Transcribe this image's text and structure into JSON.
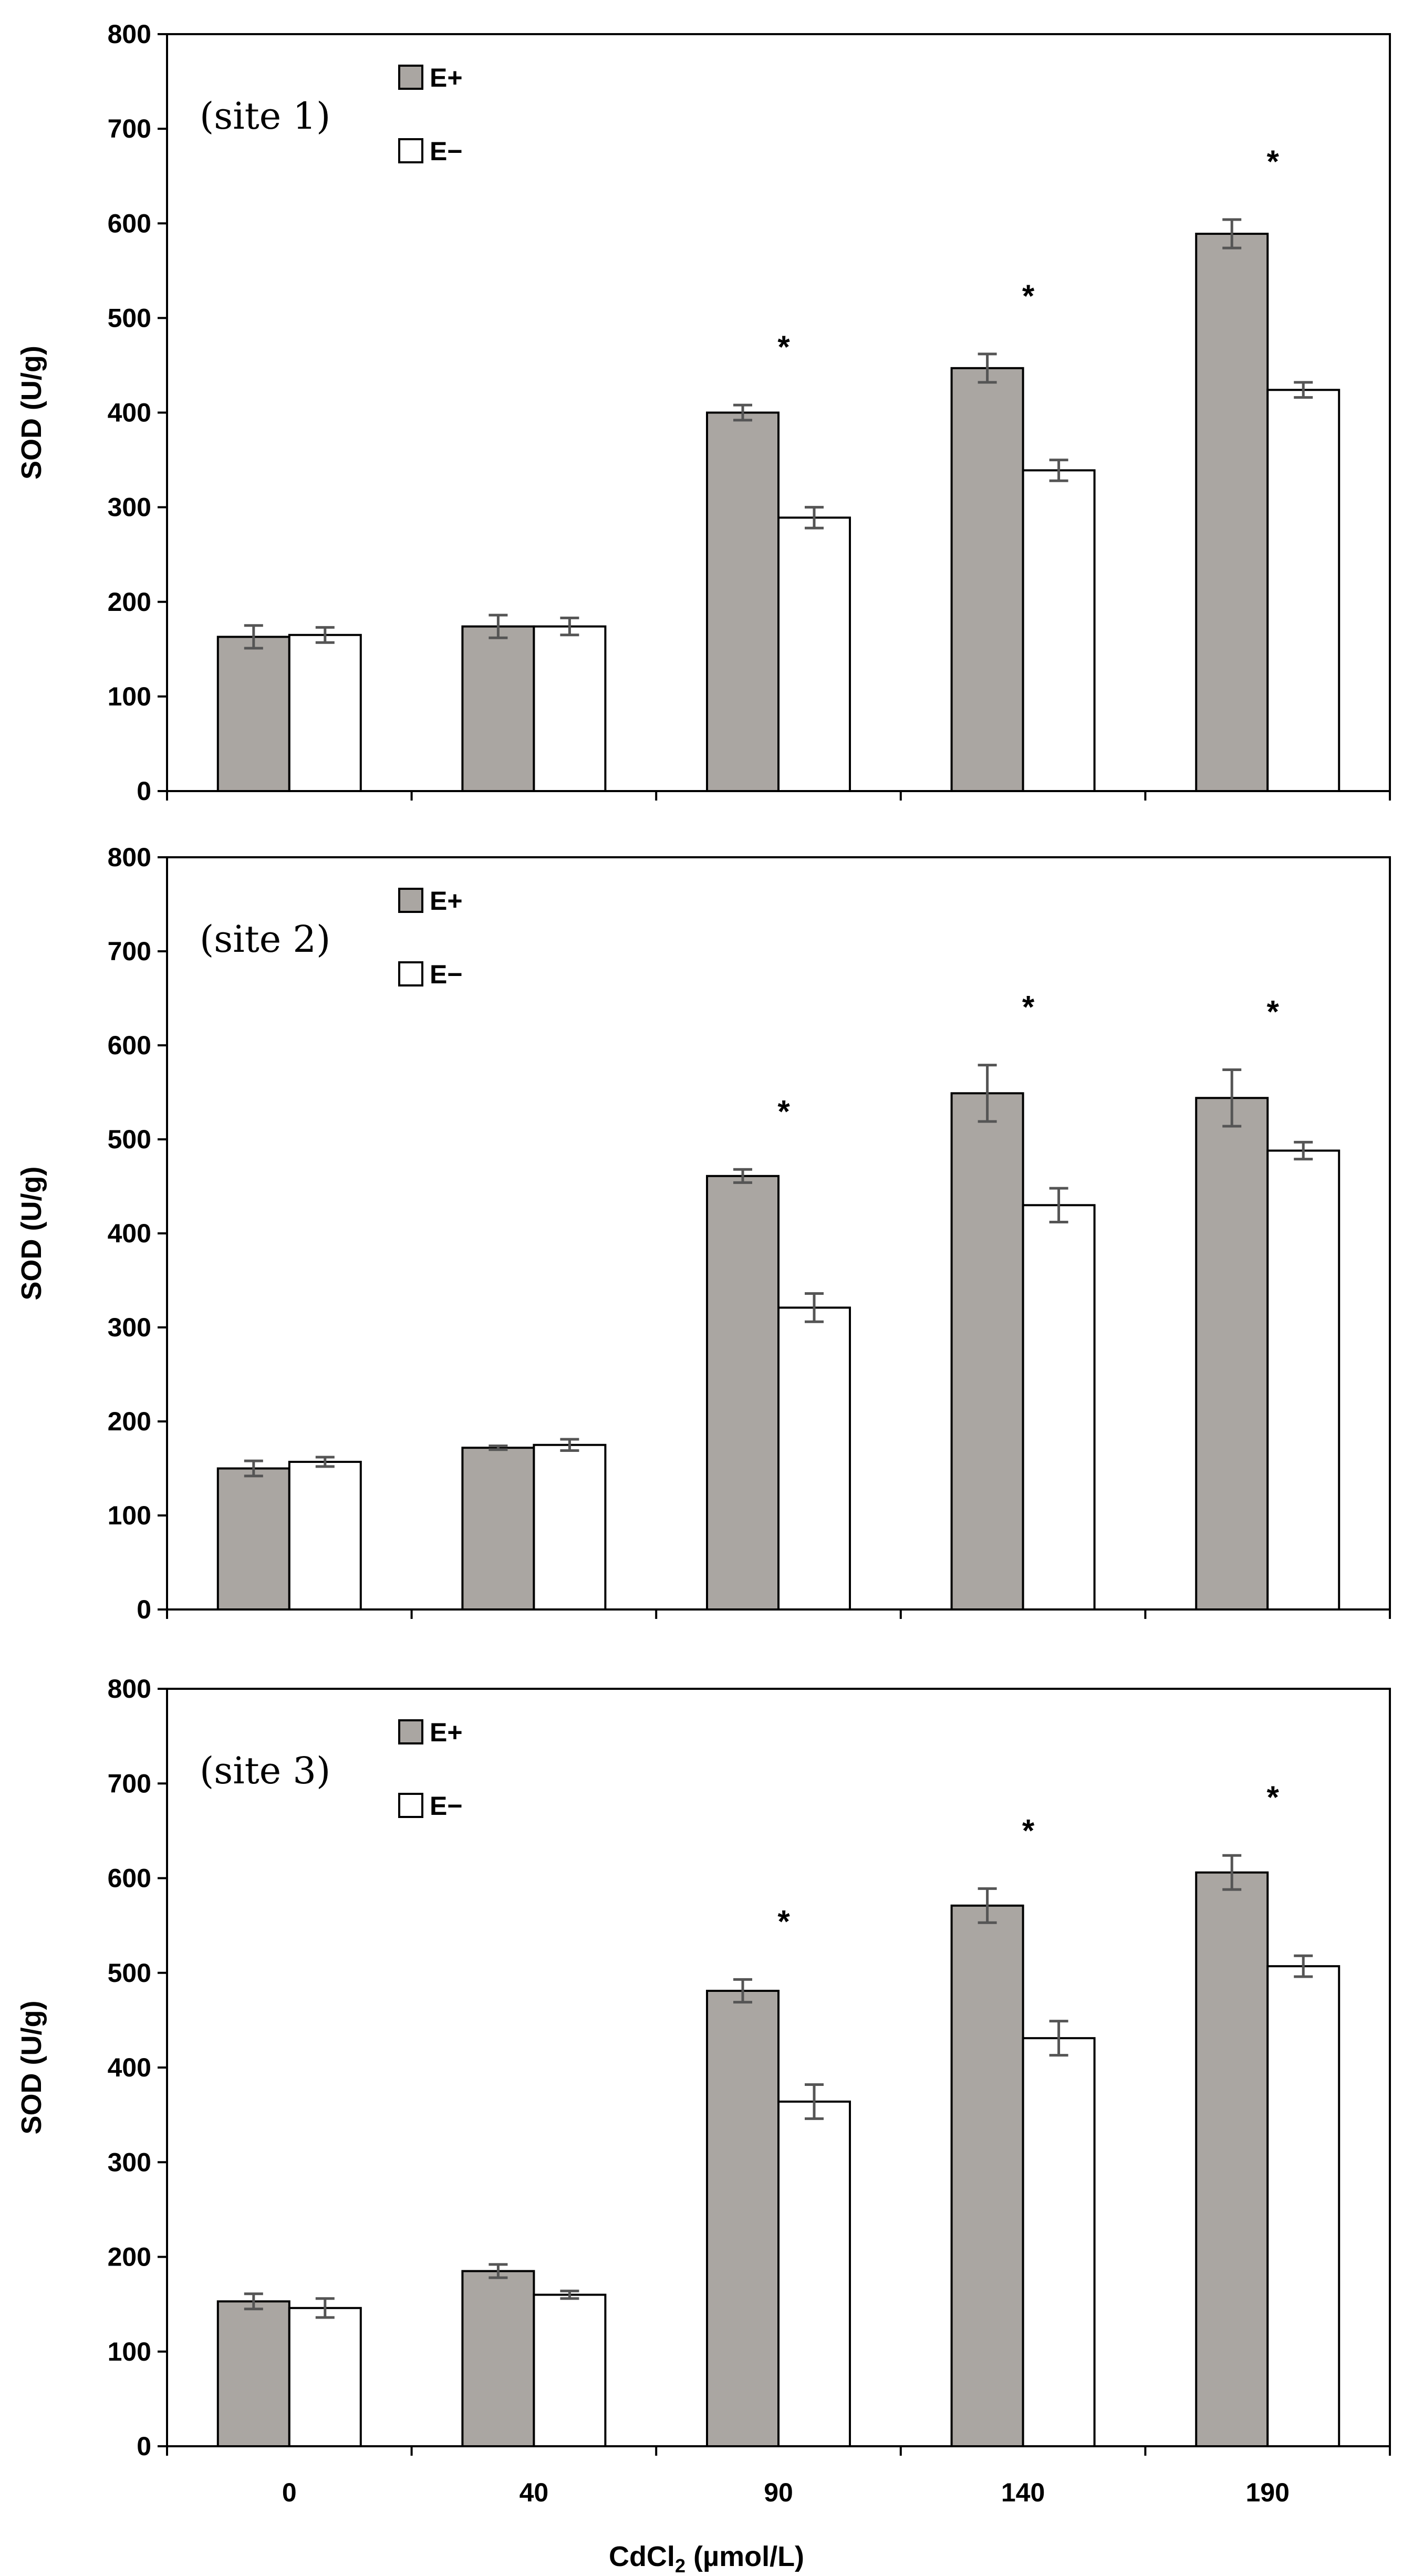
{
  "colors": {
    "e_plus": "#aaa6a2",
    "e_minus": "#ffffff",
    "stroke": "#000000",
    "error": "#555555"
  },
  "x_axis_title": {
    "main": "CdCl",
    "sub": "2",
    "rest": " (µmol/L)"
  },
  "chart_data": [
    {
      "type": "bar",
      "title": "(site 1)",
      "ylabel": "SOD (U/g)",
      "ylim": [
        0,
        800
      ],
      "yticks": [
        0,
        100,
        200,
        300,
        400,
        500,
        600,
        700,
        800
      ],
      "categories": [
        "0",
        "40",
        "90",
        "140",
        "190"
      ],
      "legend": [
        "E+",
        "E−"
      ],
      "series": [
        {
          "name": "E+",
          "values": [
            163,
            174,
            400,
            447,
            589
          ],
          "errors": [
            12,
            12,
            8,
            15,
            15
          ]
        },
        {
          "name": "E−",
          "values": [
            165,
            174,
            289,
            339,
            424
          ],
          "errors": [
            8,
            9,
            11,
            11,
            8
          ]
        }
      ],
      "significance": [
        "",
        "",
        "*",
        "*",
        "*"
      ]
    },
    {
      "type": "bar",
      "title": "(site 2)",
      "ylabel": "SOD (U/g)",
      "ylim": [
        0,
        800
      ],
      "yticks": [
        0,
        100,
        200,
        300,
        400,
        500,
        600,
        700,
        800
      ],
      "categories": [
        "0",
        "40",
        "90",
        "140",
        "190"
      ],
      "legend": [
        "E+",
        "E−"
      ],
      "series": [
        {
          "name": "E+",
          "values": [
            150,
            172,
            461,
            549,
            544
          ],
          "errors": [
            8,
            2,
            7,
            30,
            30
          ]
        },
        {
          "name": "E−",
          "values": [
            157,
            175,
            321,
            430,
            488
          ],
          "errors": [
            5,
            6,
            15,
            18,
            9
          ]
        }
      ],
      "significance": [
        "",
        "",
        "*",
        "*",
        "*"
      ]
    },
    {
      "type": "bar",
      "title": "(site 3)",
      "ylabel": "SOD (U/g)",
      "ylim": [
        0,
        800
      ],
      "yticks": [
        0,
        100,
        200,
        300,
        400,
        500,
        600,
        700,
        800
      ],
      "categories": [
        "0",
        "40",
        "90",
        "140",
        "190"
      ],
      "legend": [
        "E+",
        "E−"
      ],
      "series": [
        {
          "name": "E+",
          "values": [
            153,
            185,
            481,
            571,
            606
          ],
          "errors": [
            8,
            7,
            12,
            18,
            18
          ]
        },
        {
          "name": "E−",
          "values": [
            146,
            160,
            364,
            431,
            507
          ],
          "errors": [
            10,
            4,
            18,
            18,
            11
          ]
        }
      ],
      "significance": [
        "",
        "",
        "*",
        "*",
        "*"
      ]
    }
  ]
}
